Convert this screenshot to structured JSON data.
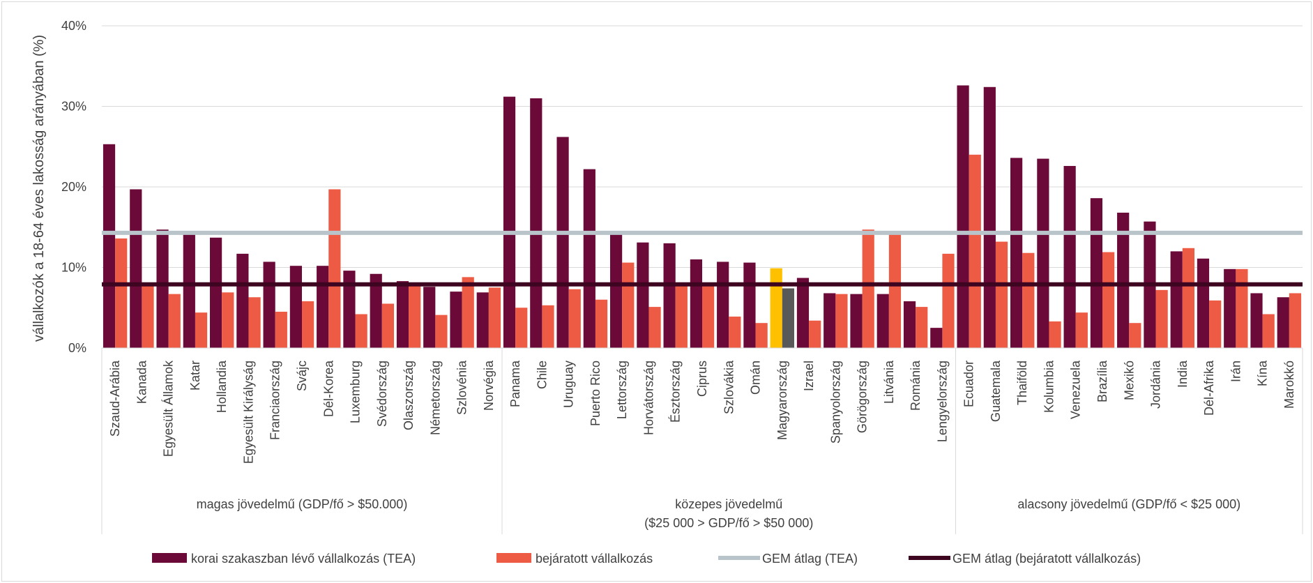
{
  "chart_data": {
    "type": "bar",
    "ylabel": "vállalkozók a 18-64 éves lakosság arányában (%)",
    "ylim": [
      0,
      40
    ],
    "yticks": [
      "0%",
      "10%",
      "20%",
      "30%",
      "40%"
    ],
    "grid": true,
    "legend_position": "bottom",
    "categories": [
      "Szaud-Arábia",
      "Kanada",
      "Egyesült Államok",
      "Katar",
      "Hollandia",
      "Egyesült Királyság",
      "Franciaország",
      "Svájc",
      "Dél-Korea",
      "Luxemburg",
      "Svédország",
      "Olaszország",
      "Németország",
      "Szlovénia",
      "Norvégia",
      "Panama",
      "Chile",
      "Uruguay",
      "Puerto Rico",
      "Lettország",
      "Horvátország",
      "Észtország",
      "Ciprus",
      "Szlovákia",
      "Omán",
      "Magyarország",
      "Izrael",
      "Spanyolország",
      "Görögország",
      "Litvánia",
      "Románia",
      "Lengyelország",
      "Ecuador",
      "Guatemala",
      "Thaiföld",
      "Kolumbia",
      "Venezuela",
      "Brazília",
      "Mexikó",
      "Jordánia",
      "India",
      "Dél-Afrika",
      "Irán",
      "Kína",
      "Marokkó"
    ],
    "groups": [
      {
        "label": "magas jövedelmű (GDP/fő > $50.000)",
        "start": 0,
        "end": 14
      },
      {
        "label": "közepes jövedelmű",
        "label2": "($25 000 > GDP/fő > $50 000)",
        "start": 15,
        "end": 31
      },
      {
        "label": "alacsony jövedelmű (GDP/fő < $25 000)",
        "start": 32,
        "end": 44
      }
    ],
    "series": [
      {
        "name": "korai szakaszban lévő vállalkozás (TEA)",
        "color": "#6b0a38",
        "values": [
          25.3,
          19.7,
          14.7,
          14.1,
          13.7,
          11.7,
          10.7,
          10.2,
          10.2,
          9.6,
          9.2,
          8.3,
          7.6,
          7.0,
          6.9,
          31.2,
          31.0,
          26.2,
          22.2,
          14.1,
          13.1,
          13.0,
          11.0,
          10.7,
          10.6,
          9.9,
          8.7,
          6.8,
          6.7,
          6.7,
          5.8,
          2.5,
          32.6,
          32.4,
          23.6,
          23.5,
          22.6,
          18.6,
          16.8,
          15.7,
          12.0,
          11.1,
          9.8,
          6.8,
          6.3
        ]
      },
      {
        "name": "bejáratott vállalkozás",
        "color": "#ed5b45",
        "values": [
          13.6,
          7.9,
          6.7,
          4.4,
          6.9,
          6.3,
          4.5,
          5.8,
          19.7,
          4.2,
          5.5,
          7.9,
          4.1,
          8.8,
          7.5,
          5.0,
          5.3,
          7.3,
          6.0,
          10.6,
          5.1,
          7.8,
          7.9,
          3.9,
          3.1,
          7.4,
          3.4,
          6.7,
          14.7,
          14.3,
          5.1,
          11.7,
          24.0,
          13.2,
          11.8,
          3.3,
          4.4,
          11.9,
          3.1,
          7.2,
          12.4,
          5.9,
          9.8,
          4.2,
          6.8
        ]
      }
    ],
    "highlight": {
      "index": 25,
      "tea_color": "#ffc000",
      "established_color": "#595959"
    },
    "lines": [
      {
        "name": "GEM átlag (TEA)",
        "value": 14.3,
        "color": "#b8c4c9"
      },
      {
        "name": "GEM átlag (bejáratott vállalkozás)",
        "value": 7.9,
        "color": "#3d0520"
      }
    ]
  }
}
